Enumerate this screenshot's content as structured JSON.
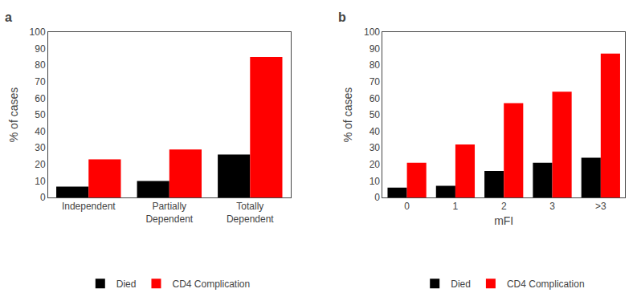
{
  "chart_data": [
    {
      "type": "bar",
      "title": "a",
      "categories": [
        "Independent",
        "Partially\nDependent",
        "Totally\nDependent"
      ],
      "series": [
        {
          "name": "Died",
          "color": "#000000",
          "values": [
            6.5,
            10,
            26
          ]
        },
        {
          "name": "CD4 Complication",
          "color": "#ff0000",
          "values": [
            23,
            29,
            85
          ]
        }
      ],
      "ylabel": "% of cases",
      "ylim": [
        0,
        100
      ],
      "yticks": [
        0,
        10,
        20,
        30,
        40,
        50,
        60,
        70,
        80,
        90,
        100
      ],
      "grid": false,
      "legend": "bottom"
    },
    {
      "type": "bar",
      "title": "b",
      "categories": [
        "0",
        "1",
        "2",
        "3",
        ">3"
      ],
      "series": [
        {
          "name": "Died",
          "color": "#000000",
          "values": [
            6,
            7,
            16,
            21,
            24
          ]
        },
        {
          "name": "CD4 Complication",
          "color": "#ff0000",
          "values": [
            21,
            32,
            57,
            64,
            87
          ]
        }
      ],
      "xlabel": "mFI",
      "ylabel": "% of cases",
      "ylim": [
        0,
        100
      ],
      "yticks": [
        0,
        10,
        20,
        30,
        40,
        50,
        60,
        70,
        80,
        90,
        100
      ],
      "grid": false,
      "legend": "bottom"
    }
  ]
}
